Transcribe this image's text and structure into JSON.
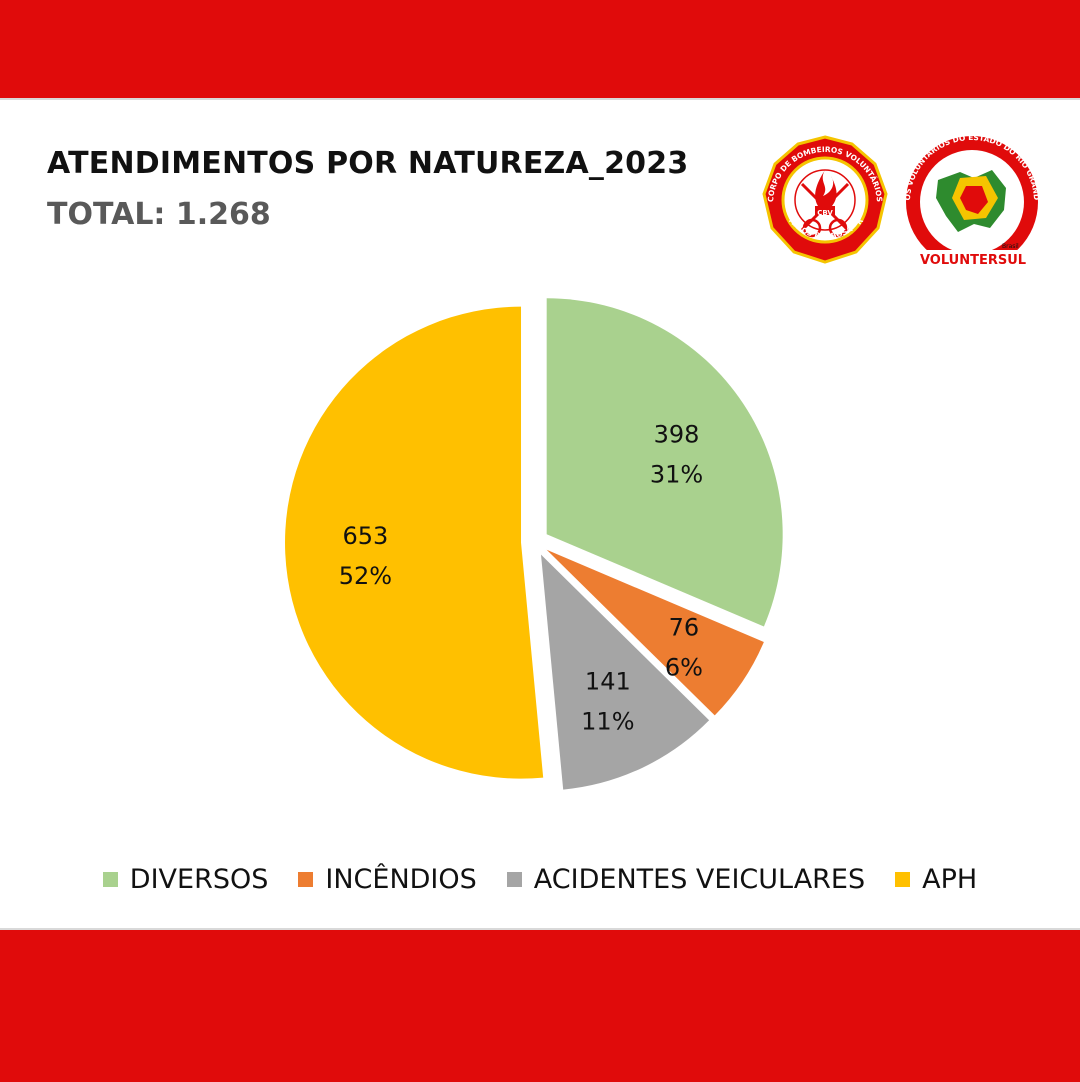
{
  "header": {
    "title": "ATENDIMENTOS POR NATUREZA_2023",
    "total": "TOTAL:  1.268"
  },
  "logos": {
    "left": {
      "ring_text": "CORPO DE BOMBEIROS VOLUNTÁRIOS",
      "bottom_text": "CARLOS BARBOSA - RS",
      "center_text": "CBV"
    },
    "right": {
      "ring_text": "BOMBEIROS VOLUNTÁRIOS DO ESTADO DO RIO GRANDE DO SUL",
      "small_text": "Brasil",
      "name": "VOLUNTERSUL"
    }
  },
  "colors": {
    "band": "#e00b0b"
  },
  "chart_data": {
    "type": "pie",
    "title": "",
    "slices": [
      {
        "label": "DIVERSOS",
        "value": 398,
        "percent": "31%",
        "color": "#a9d18e"
      },
      {
        "label": "INCÊNDIOS",
        "value": 76,
        "percent": "6%",
        "color": "#ed7d31"
      },
      {
        "label": "ACIDENTES VEICULARES",
        "value": 141,
        "percent": "11%",
        "color": "#a5a5a5"
      },
      {
        "label": "APH",
        "value": 653,
        "percent": "52%",
        "color": "#ffc000"
      }
    ],
    "legend_position": "bottom"
  }
}
